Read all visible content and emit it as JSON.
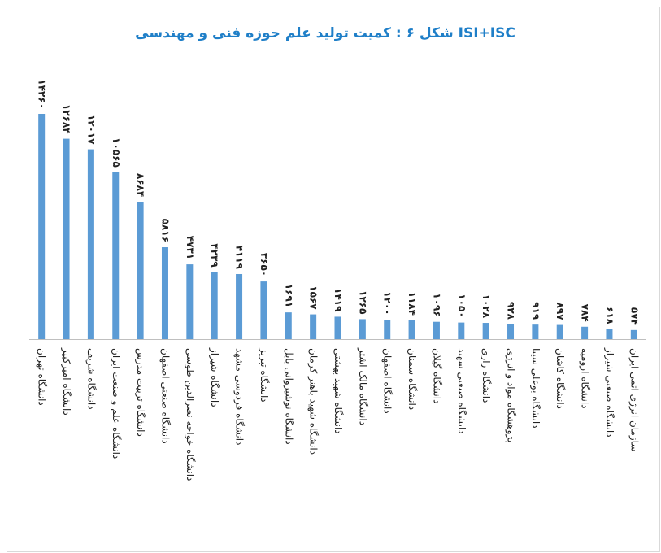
{
  "chart_data": {
    "type": "bar",
    "title": "شکل ۶ : کمیت تولید علم حوزه فنی و مهندسی  ISI+ISC",
    "categories": [
      "دانشگاه تهران",
      "دانشگاه امیرکبیر",
      "دانشگاه شریف",
      "دانشگاه علم و صنعت ایران",
      "دانشگاه تربیت مدرس",
      "دانشگاه صنعتی اصفهان",
      "دانشگاه خواجه نصرالدین طوسی",
      "دانشگاه شیراز",
      "دانشگاه فردوسی مشهد",
      "دانشگاه تبریز",
      "دانشگاه نوشیروانی بابل",
      "دانشگاه شهید باهنر کرمان",
      "دانشگاه شهید بهشتی",
      "دانشگاه مالک اشتر",
      "دانشگاه اصفهان",
      "دانشگاه سمنان",
      "دانشگاه گیلان",
      "دانشگاه صنعتی سهند",
      "دانشگاه رازی",
      "پژوهشگاه مواد و انرژی",
      "دانشگاه بوعلی سینا",
      "دانشگاه کاشان",
      "دانشگاه ارومیه",
      "دانشگاه صنعتی شیراز",
      "سازمان انرژی اتمی ایران"
    ],
    "values": [
      14260,
      12684,
      12017,
      10565,
      8684,
      5816,
      4731,
      4239,
      4119,
      3650,
      1691,
      1567,
      1419,
      1265,
      1200,
      1184,
      1096,
      1050,
      1028,
      928,
      919,
      897,
      784,
      618,
      574
    ],
    "value_labels": [
      "۱۴۲۶۰",
      "۱۲۶۸۴",
      "۱۲۰۱۷",
      "۱۰۵۶۵",
      "۸۶۸۴",
      "۵۸۱۶",
      "۴۷۳۱",
      "۴۲۳۹",
      "۴۱۱۹",
      "۳۶۵۰",
      "۱۶۹۱",
      "۱۵۶۷",
      "۱۴۱۹",
      "۱۲۶۵",
      "۱۲۰۰",
      "۱۱۸۴",
      "۱۰۹۶",
      "۱۰۵۰",
      "۱۰۲۸",
      "۹۲۸",
      "۹۱۹",
      "۸۹۷",
      "۷۸۴",
      "۶۱۸",
      "۵۷۴"
    ],
    "color": "#5b9bd5"
  }
}
